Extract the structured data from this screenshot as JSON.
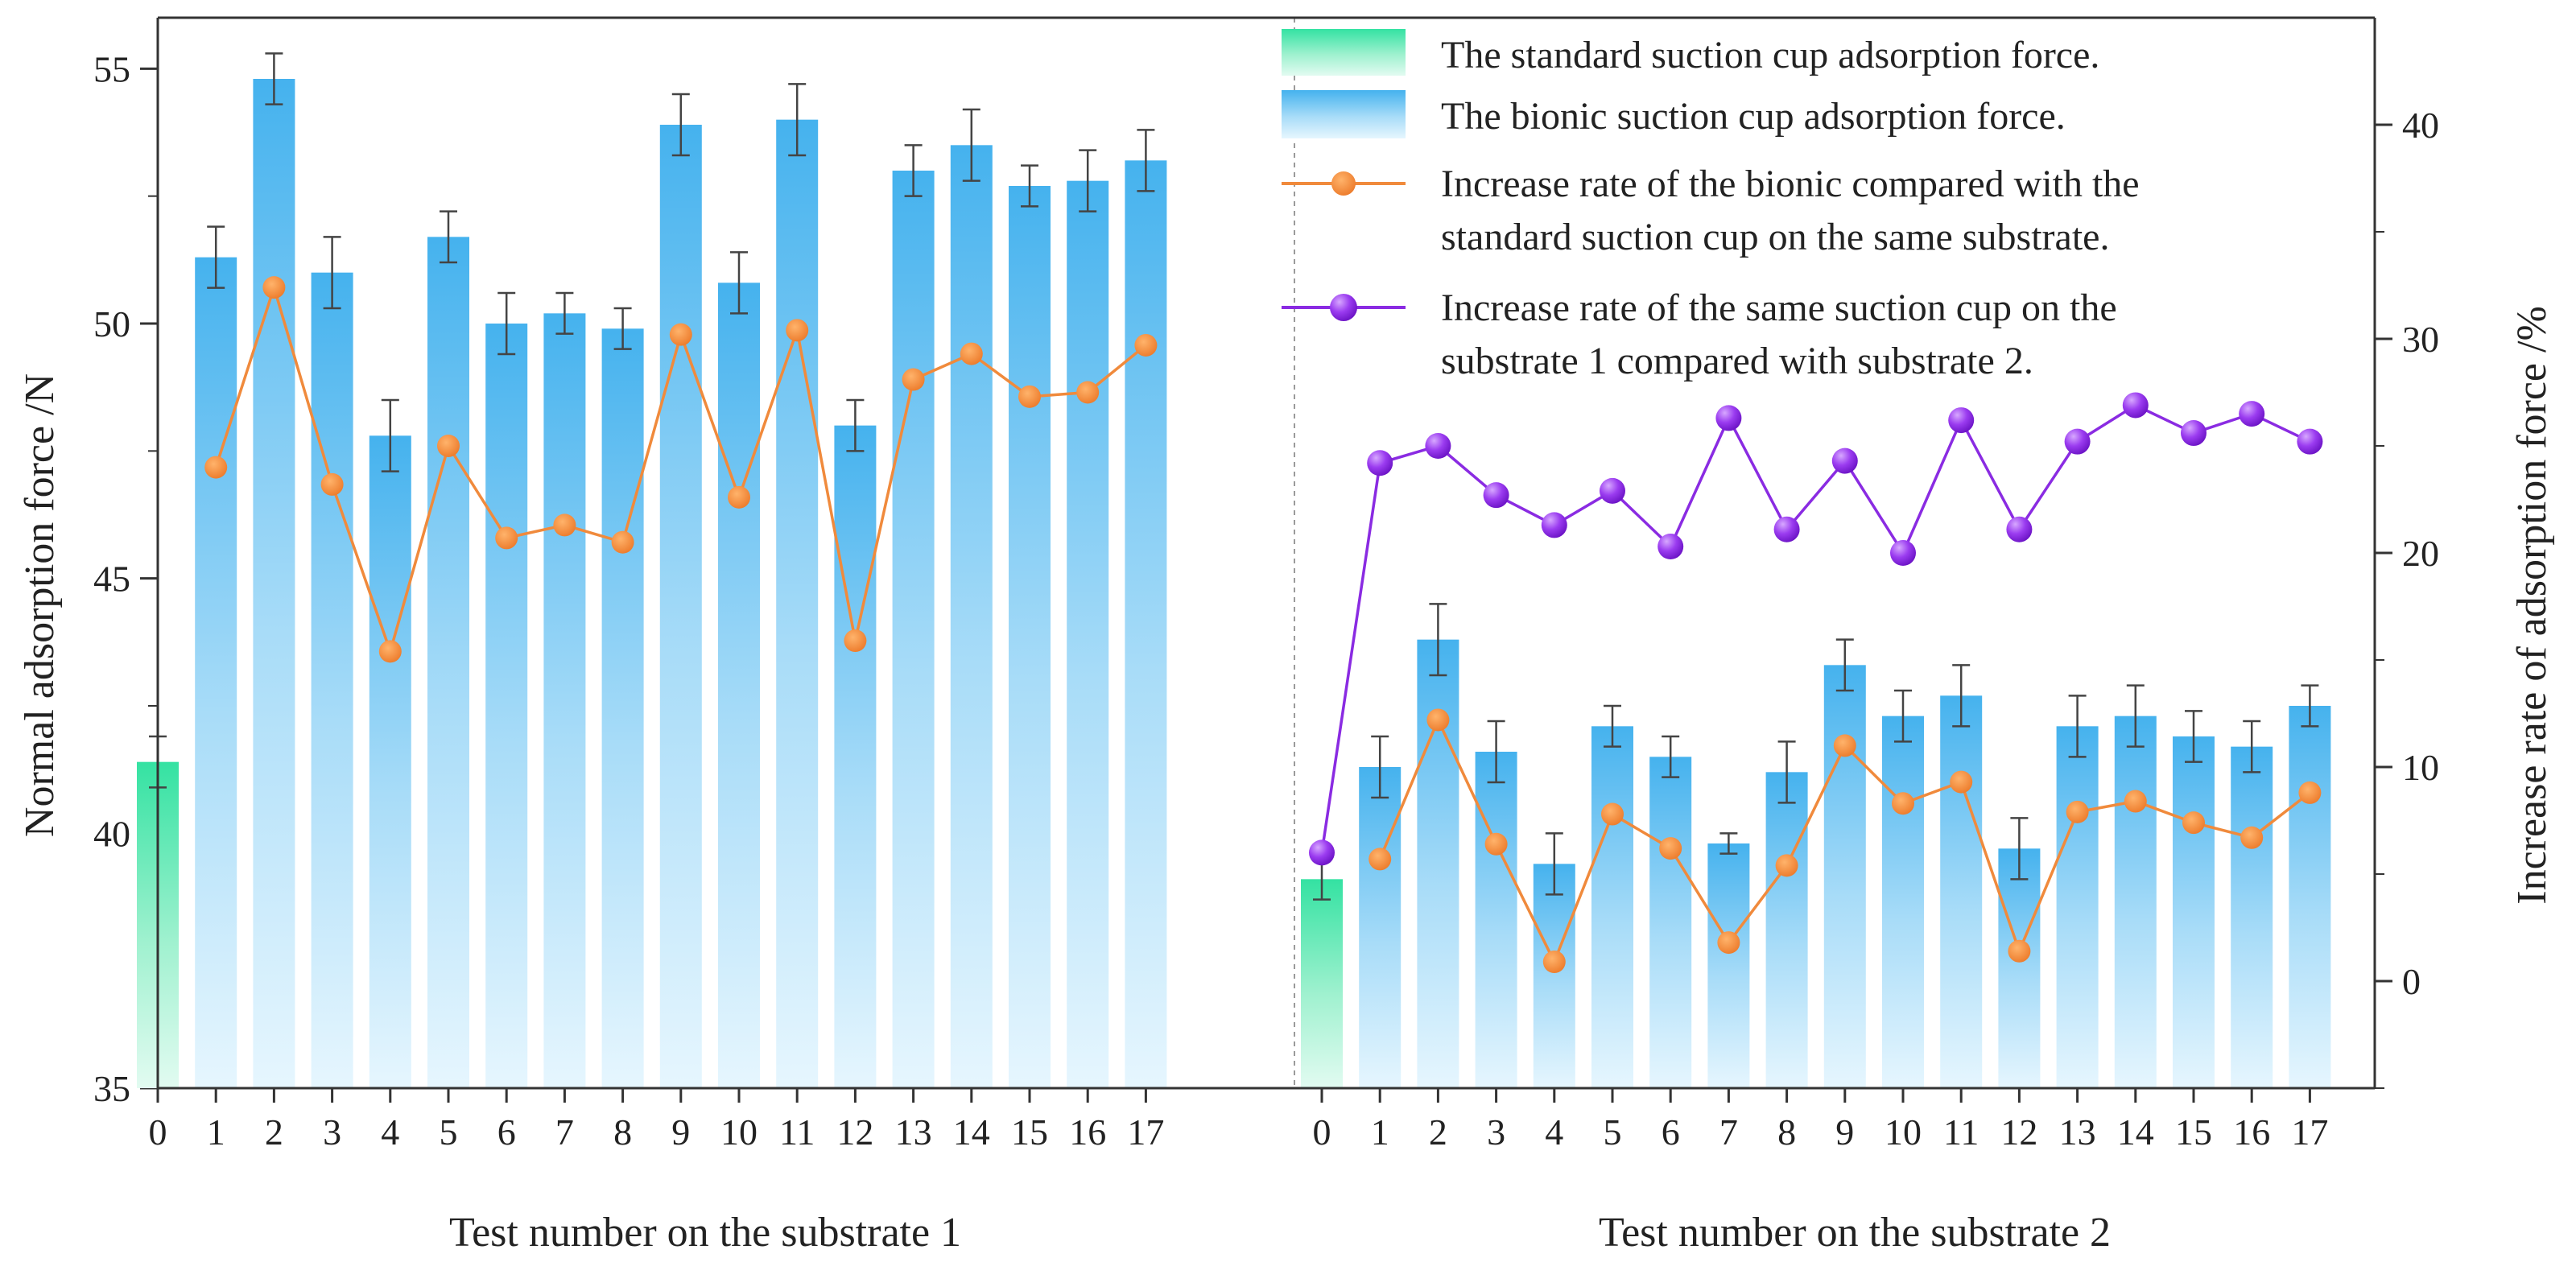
{
  "chart_data": {
    "type": "bar",
    "title": "",
    "ylabel_left": "Normal adsorption force /N",
    "ylabel_right": "Increase rate of adsorption force /%",
    "ylim_left": [
      35,
      56
    ],
    "yticks_left": [
      35,
      40,
      45,
      50,
      55
    ],
    "ylim_right": [
      -5,
      45
    ],
    "yticks_right": [
      0,
      10,
      20,
      30,
      40
    ],
    "panels": [
      {
        "xlabel": "Test number on the substrate 1",
        "categories": [
          "0",
          "1",
          "2",
          "3",
          "4",
          "5",
          "6",
          "7",
          "8",
          "9",
          "10",
          "11",
          "12",
          "13",
          "14",
          "15",
          "16",
          "17"
        ],
        "values": [
          41.4,
          51.3,
          54.8,
          51.0,
          47.8,
          51.7,
          50.0,
          50.2,
          49.9,
          53.9,
          50.8,
          54.0,
          48.0,
          53.0,
          53.5,
          52.7,
          52.8,
          53.2
        ],
        "errors": [
          0.5,
          0.6,
          0.5,
          0.7,
          0.7,
          0.5,
          0.6,
          0.4,
          0.4,
          0.6,
          0.6,
          0.7,
          0.5,
          0.5,
          0.7,
          0.4,
          0.6,
          0.6
        ],
        "increase_rate_vs_standard": [
          null,
          24.0,
          32.4,
          23.2,
          15.4,
          25.0,
          20.7,
          21.3,
          20.5,
          30.2,
          22.6,
          30.4,
          15.9,
          28.1,
          29.3,
          27.3,
          27.5,
          29.7
        ]
      },
      {
        "xlabel": "Test number on the substrate 2",
        "categories": [
          "0",
          "1",
          "2",
          "3",
          "4",
          "5",
          "6",
          "7",
          "8",
          "9",
          "10",
          "11",
          "12",
          "13",
          "14",
          "15",
          "16",
          "17"
        ],
        "values": [
          39.1,
          41.3,
          43.8,
          41.6,
          39.4,
          42.1,
          41.5,
          39.8,
          41.2,
          43.3,
          42.3,
          42.7,
          39.7,
          42.1,
          42.3,
          41.9,
          41.7,
          42.5
        ],
        "errors": [
          0.4,
          0.6,
          0.7,
          0.6,
          0.6,
          0.4,
          0.4,
          0.2,
          0.6,
          0.5,
          0.5,
          0.6,
          0.6,
          0.6,
          0.6,
          0.5,
          0.5,
          0.4
        ],
        "increase_rate_vs_standard": [
          null,
          5.7,
          12.2,
          6.4,
          0.9,
          7.8,
          6.2,
          1.8,
          5.4,
          11.0,
          8.3,
          9.3,
          1.4,
          7.9,
          8.4,
          7.4,
          6.7,
          8.8
        ],
        "increase_rate_substrate1_vs_2": [
          6.0,
          24.2,
          25.0,
          22.7,
          21.3,
          22.9,
          20.3,
          26.3,
          21.1,
          24.3,
          20.0,
          26.2,
          21.1,
          25.2,
          26.9,
          25.6,
          26.5,
          25.2
        ]
      }
    ],
    "legend": {
      "position": "top-right",
      "items": [
        {
          "kind": "bar-green",
          "label": "The standard suction cup adsorption force."
        },
        {
          "kind": "bar-blue",
          "label": "The bionic suction cup adsorption force."
        },
        {
          "kind": "line-orange",
          "label": "Increase rate of the bionic compared with the",
          "label2": "standard suction cup on the same substrate."
        },
        {
          "kind": "line-purple",
          "label": "Increase rate of the same  suction cup on the",
          "label2": "substrate 1 compared with substrate 2."
        }
      ]
    },
    "colors": {
      "standard_bar": "#3de6a6",
      "bionic_bar": "#4ab4ee",
      "orange_line": "#f08a3c",
      "purple_line": "#8a2be2",
      "error_bar": "#444444"
    }
  }
}
